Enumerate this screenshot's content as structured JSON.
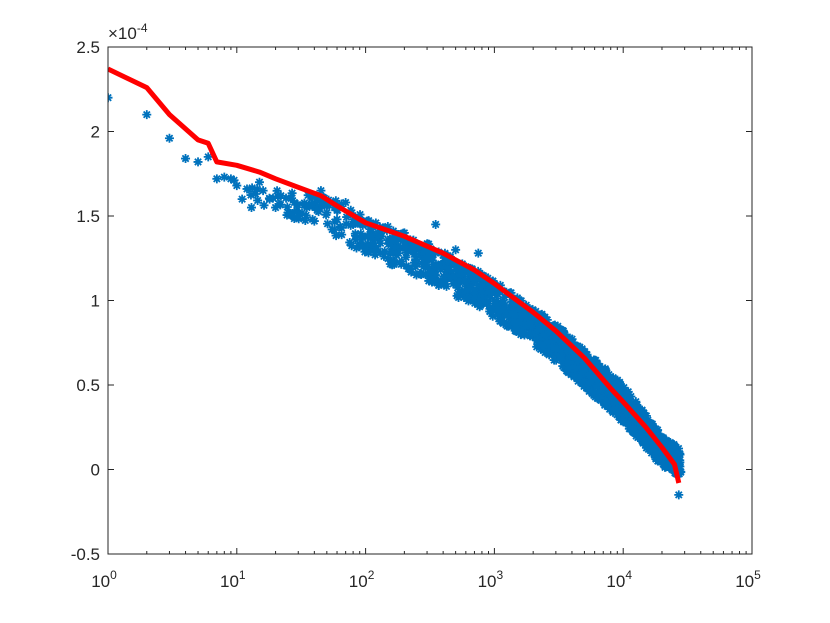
{
  "chart_data": {
    "type": "scatter",
    "x_scale": "log",
    "xlim": [
      1,
      100000
    ],
    "ylim": [
      -0.5,
      2.5
    ],
    "y_multiplier": "×10^-4",
    "multiplier_base": "×10",
    "multiplier_exponent": "-4",
    "grid": false,
    "xticks": [
      {
        "value": 1,
        "base": "10",
        "exp": "0"
      },
      {
        "value": 10,
        "base": "10",
        "exp": "1"
      },
      {
        "value": 100,
        "base": "10",
        "exp": "2"
      },
      {
        "value": 1000,
        "base": "10",
        "exp": "3"
      },
      {
        "value": 10000,
        "base": "10",
        "exp": "4"
      },
      {
        "value": 100000,
        "base": "10",
        "exp": "5"
      }
    ],
    "yticks": [
      {
        "value": -0.5,
        "label": "-0.5"
      },
      {
        "value": 0,
        "label": "0"
      },
      {
        "value": 0.5,
        "label": "0.5"
      },
      {
        "value": 1,
        "label": "1"
      },
      {
        "value": 1.5,
        "label": "1.5"
      },
      {
        "value": 2,
        "label": "2"
      },
      {
        "value": 2.5,
        "label": "2.5"
      }
    ],
    "series": [
      {
        "type": "scatter",
        "marker": "asterisk",
        "color": "#0072BD",
        "points": [
          [
            1,
            2.2
          ],
          [
            2,
            2.1
          ],
          [
            3,
            1.96
          ],
          [
            4,
            1.84
          ],
          [
            5,
            1.82
          ],
          [
            6,
            1.85
          ],
          [
            7,
            1.72
          ],
          [
            8,
            1.73
          ],
          [
            9,
            1.72
          ],
          [
            10,
            1.68
          ],
          [
            11,
            1.6
          ],
          [
            12,
            1.66
          ],
          [
            13,
            1.55
          ],
          [
            14,
            1.63
          ],
          [
            15,
            1.7
          ],
          [
            16,
            1.65
          ],
          [
            18,
            1.6
          ],
          [
            20,
            1.55
          ],
          [
            22,
            1.62
          ],
          [
            25,
            1.52
          ],
          [
            28,
            1.58
          ],
          [
            30,
            1.5
          ],
          [
            35,
            1.55
          ],
          [
            40,
            1.47
          ],
          [
            45,
            1.65
          ],
          [
            50,
            1.52
          ],
          [
            55,
            1.42
          ],
          [
            60,
            1.48
          ],
          [
            70,
            1.58
          ],
          [
            80,
            1.45
          ],
          [
            90,
            1.32
          ],
          [
            100,
            1.46
          ],
          [
            110,
            1.38
          ],
          [
            120,
            1.3
          ],
          [
            140,
            1.43
          ],
          [
            160,
            1.35
          ],
          [
            180,
            1.28
          ],
          [
            200,
            1.4
          ],
          [
            230,
            1.3
          ],
          [
            260,
            1.32
          ],
          [
            300,
            1.25
          ],
          [
            350,
            1.45
          ],
          [
            400,
            1.27
          ],
          [
            450,
            1.18
          ],
          [
            500,
            1.3
          ],
          [
            600,
            1.2
          ],
          [
            700,
            1.12
          ],
          [
            750,
            1.28
          ],
          [
            800,
            1.15
          ],
          [
            900,
            1.05
          ],
          [
            1000,
            1.1
          ],
          [
            1200,
            1.02
          ],
          [
            1400,
            0.98
          ],
          [
            1600,
            0.95
          ],
          [
            1800,
            0.9
          ],
          [
            2000,
            0.92
          ],
          [
            2500,
            0.85
          ],
          [
            3000,
            0.78
          ],
          [
            3500,
            0.8
          ],
          [
            4000,
            0.7
          ],
          [
            4500,
            0.68
          ],
          [
            5000,
            0.62
          ],
          [
            6000,
            0.58
          ],
          [
            7000,
            0.5
          ],
          [
            8000,
            0.45
          ],
          [
            9000,
            0.4
          ],
          [
            10000,
            0.36
          ],
          [
            12000,
            0.3
          ],
          [
            14000,
            0.24
          ],
          [
            16000,
            0.2
          ],
          [
            18000,
            0.15
          ],
          [
            20000,
            0.1
          ],
          [
            22000,
            0.06
          ],
          [
            24000,
            0.03
          ],
          [
            26000,
            0.0
          ],
          [
            27000,
            -0.15
          ]
        ],
        "band": {
          "x_start": 8,
          "x_end": 28000,
          "density": 1400,
          "upper": [
            [
              8,
              1.78
            ],
            [
              20,
              1.7
            ],
            [
              50,
              1.62
            ],
            [
              100,
              1.5
            ],
            [
              300,
              1.34
            ],
            [
              1000,
              1.12
            ],
            [
              3000,
              0.86
            ],
            [
              10000,
              0.5
            ],
            [
              20000,
              0.2
            ],
            [
              28000,
              0.12
            ]
          ],
          "lower": [
            [
              8,
              1.7
            ],
            [
              20,
              1.52
            ],
            [
              50,
              1.4
            ],
            [
              100,
              1.28
            ],
            [
              300,
              1.12
            ],
            [
              1000,
              0.9
            ],
            [
              3000,
              0.64
            ],
            [
              10000,
              0.28
            ],
            [
              20000,
              0.02
            ],
            [
              28000,
              -0.04
            ]
          ]
        }
      },
      {
        "type": "line",
        "color": "#FF0000",
        "points": [
          [
            1,
            2.37
          ],
          [
            2,
            2.26
          ],
          [
            3,
            2.1
          ],
          [
            5,
            1.95
          ],
          [
            6,
            1.93
          ],
          [
            7,
            1.82
          ],
          [
            10,
            1.8
          ],
          [
            15,
            1.76
          ],
          [
            20,
            1.72
          ],
          [
            30,
            1.67
          ],
          [
            45,
            1.62
          ],
          [
            60,
            1.56
          ],
          [
            100,
            1.46
          ],
          [
            200,
            1.38
          ],
          [
            400,
            1.28
          ],
          [
            700,
            1.18
          ],
          [
            1000,
            1.1
          ],
          [
            1500,
            1.0
          ],
          [
            2000,
            0.93
          ],
          [
            3000,
            0.82
          ],
          [
            5000,
            0.66
          ],
          [
            8000,
            0.48
          ],
          [
            10000,
            0.4
          ],
          [
            15000,
            0.25
          ],
          [
            20000,
            0.13
          ],
          [
            25000,
            0.03
          ],
          [
            27000,
            -0.08
          ]
        ]
      }
    ]
  }
}
